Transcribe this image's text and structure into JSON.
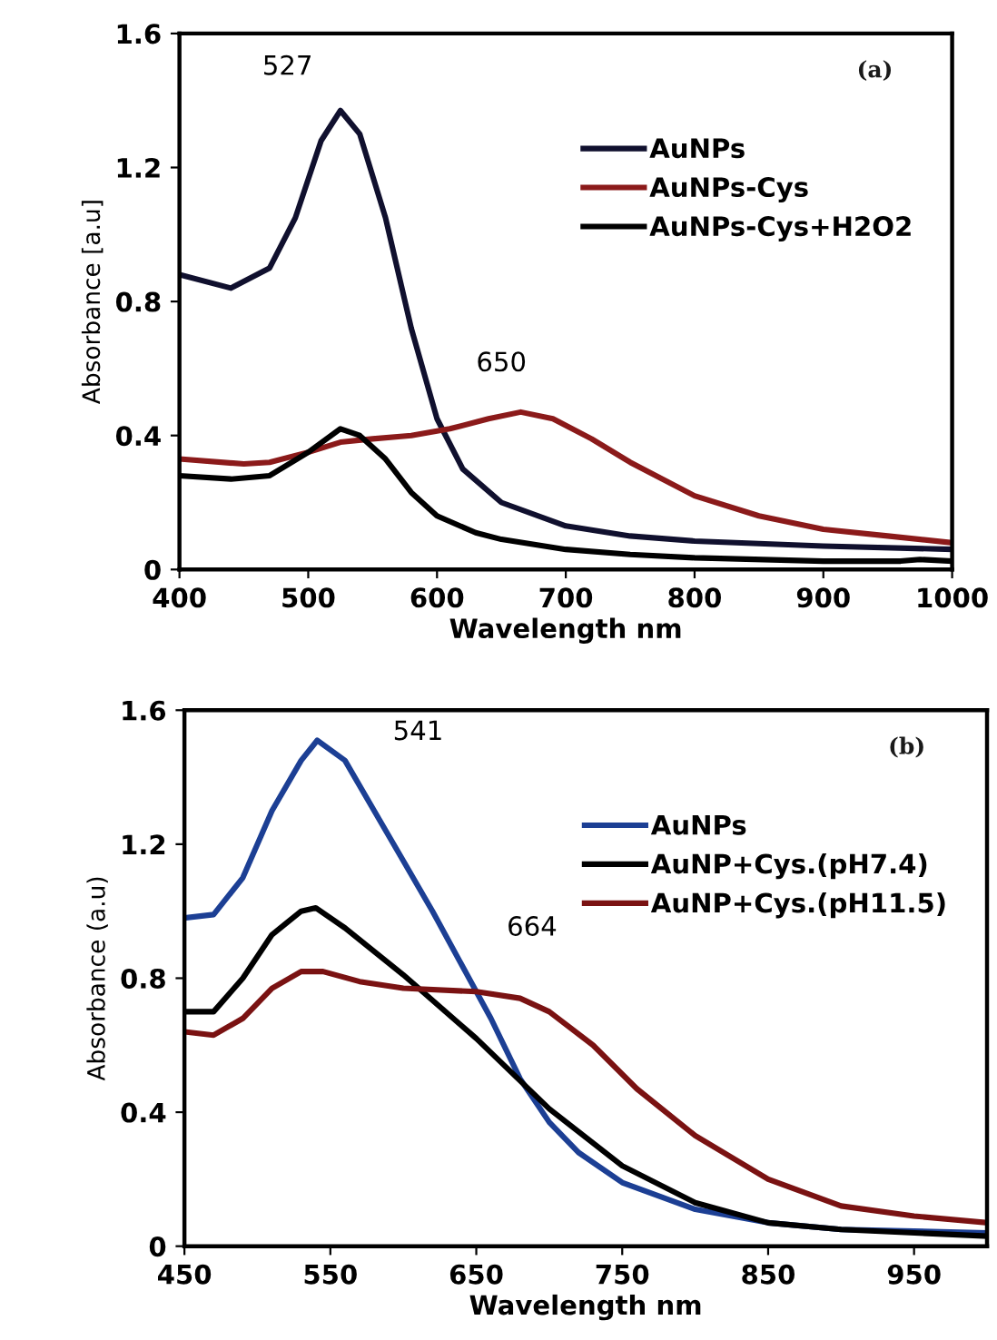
{
  "chart_data": [
    {
      "type": "line",
      "xlabel": "Wavelength nm",
      "ylabel": "Absorbance [a.u]",
      "xlim": [
        400,
        1000
      ],
      "xticks": [
        400,
        500,
        600,
        700,
        800,
        900,
        1000
      ],
      "ylim": [
        0,
        1.6
      ],
      "yticks": [
        0,
        0.4,
        0.8,
        1.2,
        1.6
      ],
      "grid": false,
      "legend": "top right",
      "annotations": [
        {
          "text": "527",
          "x": 527,
          "y": 1.37
        },
        {
          "text": "650",
          "x": 650,
          "y": 0.47
        },
        "(a)"
      ],
      "series": [
        {
          "name": "AuNPs",
          "color": "#10102e",
          "x": [
            400,
            440,
            470,
            490,
            510,
            525,
            540,
            560,
            580,
            600,
            620,
            650,
            700,
            750,
            800,
            900,
            1000
          ],
          "values": [
            0.88,
            0.84,
            0.9,
            1.05,
            1.28,
            1.37,
            1.3,
            1.05,
            0.72,
            0.45,
            0.3,
            0.2,
            0.13,
            0.1,
            0.085,
            0.07,
            0.06
          ]
        },
        {
          "name": "AuNPs-Cys",
          "color": "#8b1a1a",
          "x": [
            400,
            450,
            470,
            500,
            525,
            550,
            580,
            610,
            640,
            665,
            690,
            720,
            750,
            800,
            850,
            900,
            950,
            1000
          ],
          "values": [
            0.33,
            0.315,
            0.32,
            0.35,
            0.38,
            0.39,
            0.4,
            0.42,
            0.45,
            0.47,
            0.45,
            0.39,
            0.32,
            0.22,
            0.16,
            0.12,
            0.1,
            0.08
          ]
        },
        {
          "name": "AuNPs-Cys+H2O2",
          "color": "#000000",
          "x": [
            400,
            440,
            470,
            500,
            525,
            540,
            560,
            580,
            600,
            630,
            650,
            700,
            750,
            800,
            900,
            960,
            975,
            1000
          ],
          "values": [
            0.28,
            0.27,
            0.28,
            0.35,
            0.42,
            0.4,
            0.33,
            0.23,
            0.16,
            0.11,
            0.09,
            0.06,
            0.045,
            0.035,
            0.025,
            0.025,
            0.03,
            0.025
          ]
        }
      ]
    },
    {
      "type": "line",
      "xlabel": "Wavelength nm",
      "ylabel": "Absorbance (a.u)",
      "xlim": [
        450,
        1000
      ],
      "xticks": [
        450,
        550,
        650,
        750,
        850,
        950
      ],
      "ylim": [
        0,
        1.6
      ],
      "yticks": [
        0,
        0.4,
        0.8,
        1.2,
        1.6
      ],
      "grid": false,
      "legend": "top right",
      "annotations": [
        {
          "text": "541",
          "x": 541,
          "y": 1.51
        },
        {
          "text": "664",
          "x": 664,
          "y": 0.76
        },
        "(b)"
      ],
      "series": [
        {
          "name": "AuNPs",
          "color": "#1c3f94",
          "x": [
            450,
            470,
            490,
            510,
            530,
            541,
            560,
            580,
            600,
            620,
            640,
            660,
            680,
            700,
            720,
            750,
            800,
            850,
            900,
            1000
          ],
          "values": [
            0.98,
            0.99,
            1.1,
            1.3,
            1.45,
            1.51,
            1.45,
            1.3,
            1.15,
            1.0,
            0.84,
            0.68,
            0.5,
            0.37,
            0.28,
            0.19,
            0.11,
            0.07,
            0.05,
            0.04
          ]
        },
        {
          "name": "AuNP+Cys.(pH7.4)",
          "color": "#000000",
          "x": [
            450,
            470,
            490,
            510,
            530,
            540,
            560,
            600,
            650,
            700,
            750,
            800,
            850,
            900,
            1000
          ],
          "values": [
            0.7,
            0.7,
            0.8,
            0.93,
            1.0,
            1.01,
            0.95,
            0.81,
            0.62,
            0.41,
            0.24,
            0.13,
            0.07,
            0.05,
            0.03
          ]
        },
        {
          "name": "AuNP+Cys.(pH11.5)",
          "color": "#7a1212",
          "x": [
            450,
            470,
            490,
            510,
            530,
            545,
            570,
            600,
            650,
            680,
            700,
            730,
            760,
            800,
            850,
            900,
            950,
            1000
          ],
          "values": [
            0.64,
            0.63,
            0.68,
            0.77,
            0.82,
            0.82,
            0.79,
            0.77,
            0.76,
            0.74,
            0.7,
            0.6,
            0.47,
            0.33,
            0.2,
            0.12,
            0.09,
            0.07
          ]
        }
      ]
    }
  ]
}
